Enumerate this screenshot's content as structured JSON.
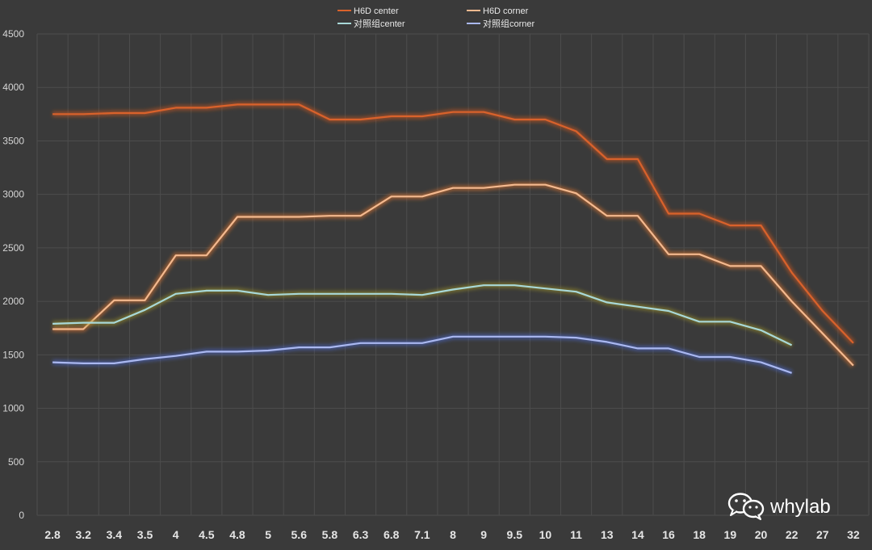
{
  "chart_data": {
    "type": "line",
    "title": "",
    "xlabel": "",
    "ylabel": "",
    "ylim": [
      0,
      4500
    ],
    "yticks": [
      0,
      500,
      1000,
      1500,
      2000,
      2500,
      3000,
      3500,
      4000,
      4500
    ],
    "grid": true,
    "legend_position": "top-center",
    "categories": [
      "2.8",
      "3.2",
      "3.4",
      "3.5",
      "4",
      "4.5",
      "4.8",
      "5",
      "5.6",
      "5.8",
      "6.3",
      "6.8",
      "7.1",
      "8",
      "9",
      "9.5",
      "10",
      "11",
      "13",
      "14",
      "16",
      "18",
      "19",
      "20",
      "22",
      "27",
      "32"
    ],
    "series": [
      {
        "name": "H6D center",
        "color": "#d9622b",
        "glow": "#c8551f",
        "values": [
          3750,
          3750,
          3760,
          3760,
          3810,
          3810,
          3840,
          3840,
          3840,
          3700,
          3700,
          3730,
          3730,
          3770,
          3770,
          3700,
          3700,
          3590,
          3330,
          3330,
          2820,
          2820,
          2710,
          2710,
          2270,
          1910,
          1610
        ]
      },
      {
        "name": "H6D corner",
        "color": "#f3b98f",
        "glow": "#d8732f",
        "values": [
          1740,
          1740,
          2010,
          2010,
          2430,
          2430,
          2790,
          2790,
          2790,
          2800,
          2800,
          2980,
          2980,
          3060,
          3060,
          3090,
          3090,
          3010,
          2800,
          2800,
          2440,
          2440,
          2330,
          2330,
          2000,
          1700,
          1400
        ]
      },
      {
        "name": "对照组center",
        "color": "#a8d8d8",
        "glow": "#9a8f2a",
        "values": [
          1790,
          1800,
          1800,
          1920,
          2070,
          2100,
          2100,
          2060,
          2070,
          2070,
          2070,
          2070,
          2060,
          2110,
          2150,
          2150,
          2120,
          2090,
          1990,
          1950,
          1910,
          1810,
          1810,
          1730,
          1590,
          null,
          null
        ]
      },
      {
        "name": "对照组corner",
        "color": "#aab8f0",
        "glow": "#4a68c8",
        "values": [
          1430,
          1420,
          1420,
          1460,
          1490,
          1530,
          1530,
          1540,
          1570,
          1570,
          1610,
          1610,
          1610,
          1670,
          1670,
          1670,
          1670,
          1660,
          1620,
          1560,
          1560,
          1480,
          1480,
          1430,
          1330,
          null,
          null
        ]
      }
    ]
  },
  "watermark": {
    "text": "whylab",
    "icon": "wechat-icon"
  }
}
